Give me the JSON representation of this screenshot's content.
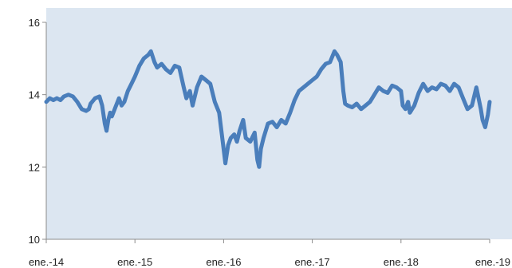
{
  "chart_data": {
    "type": "line",
    "title": "",
    "xlabel": "",
    "ylabel": "",
    "ylim": [
      10,
      16
    ],
    "yticks": [
      10,
      12,
      14,
      16
    ],
    "xlim": [
      2014,
      2019
    ],
    "xticks": [
      {
        "value": 2014,
        "label": "ene.-14"
      },
      {
        "value": 2015,
        "label": "ene.-15"
      },
      {
        "value": 2016,
        "label": "ene.-16"
      },
      {
        "value": 2017,
        "label": "ene.-17"
      },
      {
        "value": 2018,
        "label": "ene.-18"
      },
      {
        "value": 2019,
        "label": "ene.-19"
      }
    ],
    "grid": false,
    "legend": "none",
    "colors": {
      "plot_background": "#dce6f1",
      "series": "#4a7ebb",
      "axis": "#8c8c8c"
    },
    "series": [
      {
        "x": [
          2014.0,
          2014.04,
          2014.08,
          2014.12,
          2014.16,
          2014.2,
          2014.25,
          2014.3,
          2014.35,
          2014.4,
          2014.45,
          2014.48,
          2014.5,
          2014.55,
          2014.6,
          2014.63,
          2014.66,
          2014.68,
          2014.7,
          2014.72,
          2014.74,
          2014.78,
          2014.82,
          2014.85,
          2014.88,
          2014.92,
          2014.96,
          2015.0,
          2015.05,
          2015.1,
          2015.15,
          2015.18,
          2015.22,
          2015.25,
          2015.3,
          2015.35,
          2015.4,
          2015.45,
          2015.5,
          2015.55,
          2015.58,
          2015.62,
          2015.65,
          2015.7,
          2015.75,
          2015.8,
          2015.85,
          2015.9,
          2015.95,
          2016.0,
          2016.02,
          2016.05,
          2016.08,
          2016.12,
          2016.15,
          2016.18,
          2016.22,
          2016.25,
          2016.3,
          2016.35,
          2016.38,
          2016.4,
          2016.42,
          2016.45,
          2016.5,
          2016.55,
          2016.6,
          2016.65,
          2016.7,
          2016.75,
          2016.8,
          2016.85,
          2016.9,
          2016.95,
          2017.0,
          2017.05,
          2017.1,
          2017.15,
          2017.2,
          2017.25,
          2017.28,
          2017.32,
          2017.35,
          2017.37,
          2017.4,
          2017.45,
          2017.5,
          2017.55,
          2017.6,
          2017.65,
          2017.7,
          2017.75,
          2017.8,
          2017.85,
          2017.9,
          2017.95,
          2018.0,
          2018.02,
          2018.05,
          2018.08,
          2018.1,
          2018.15,
          2018.2,
          2018.25,
          2018.3,
          2018.35,
          2018.4,
          2018.45,
          2018.5,
          2018.55,
          2018.6,
          2018.65,
          2018.7,
          2018.75,
          2018.8,
          2018.85,
          2018.9,
          2018.92,
          2018.95,
          2018.98,
          2019.0
        ],
        "y": [
          13.8,
          13.9,
          13.85,
          13.9,
          13.85,
          13.95,
          14.0,
          13.95,
          13.8,
          13.6,
          13.55,
          13.6,
          13.75,
          13.9,
          13.95,
          13.7,
          13.2,
          13.0,
          13.3,
          13.5,
          13.4,
          13.65,
          13.9,
          13.7,
          13.8,
          14.1,
          14.3,
          14.5,
          14.8,
          15.0,
          15.1,
          15.2,
          14.9,
          14.75,
          14.85,
          14.7,
          14.6,
          14.8,
          14.75,
          14.2,
          13.9,
          14.1,
          13.7,
          14.2,
          14.5,
          14.4,
          14.3,
          13.8,
          13.5,
          12.5,
          12.1,
          12.6,
          12.8,
          12.9,
          12.7,
          13.0,
          13.3,
          12.8,
          12.7,
          12.95,
          12.2,
          12.0,
          12.5,
          12.8,
          13.2,
          13.25,
          13.1,
          13.3,
          13.2,
          13.5,
          13.85,
          14.1,
          14.2,
          14.3,
          14.4,
          14.5,
          14.7,
          14.85,
          14.9,
          15.2,
          15.1,
          14.9,
          14.1,
          13.75,
          13.7,
          13.65,
          13.75,
          13.6,
          13.7,
          13.8,
          14.0,
          14.2,
          14.1,
          14.05,
          14.25,
          14.2,
          14.1,
          13.7,
          13.6,
          13.8,
          13.5,
          13.7,
          14.05,
          14.3,
          14.1,
          14.2,
          14.15,
          14.3,
          14.25,
          14.1,
          14.3,
          14.2,
          13.9,
          13.6,
          13.7,
          14.2,
          13.6,
          13.3,
          13.1,
          13.45,
          13.8
        ]
      }
    ]
  }
}
